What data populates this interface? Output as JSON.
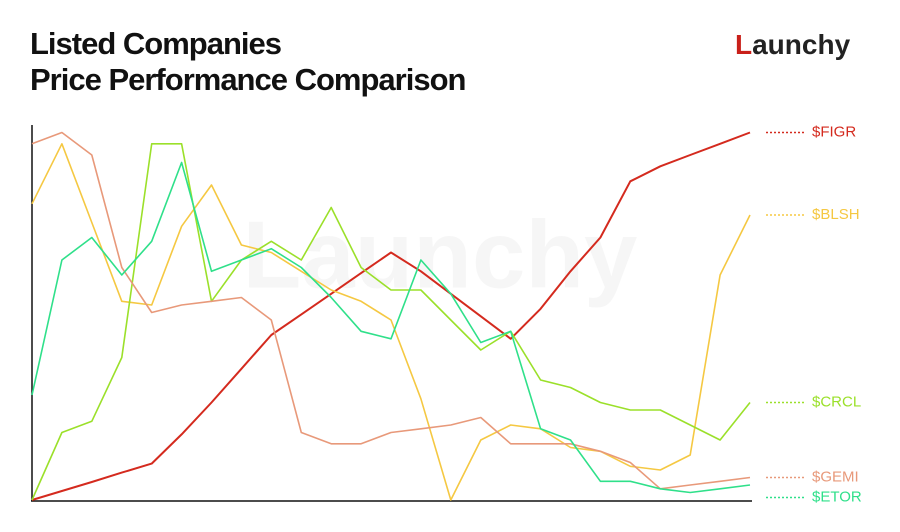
{
  "chart_data": {
    "type": "line",
    "title": [
      "Listed Companies",
      "Price Performance Comparison"
    ],
    "logo": {
      "initial": "L",
      "rest": "aunchy"
    },
    "watermark": "Launchy",
    "ylim": [
      0,
      100
    ],
    "series": [
      {
        "name": "$FIGR",
        "color": "#d42a1e",
        "values": [
          0,
          2.4,
          4.8,
          7.3,
          9.7,
          17.5,
          26,
          35,
          44,
          49.5,
          55,
          60.5,
          66,
          61,
          55,
          49,
          43,
          51,
          61,
          70,
          85,
          89,
          92,
          95,
          98
        ]
      },
      {
        "name": "$BLSH",
        "color": "#f5c842",
        "values": [
          79,
          95,
          74,
          53,
          52,
          73,
          84,
          68,
          66,
          61,
          56,
          53,
          48,
          27,
          0,
          16,
          20,
          19,
          14,
          13,
          9,
          8,
          12,
          60,
          76
        ]
      },
      {
        "name": "$CRCL",
        "color": "#9be02a",
        "values": [
          0,
          18,
          21,
          38,
          95,
          95,
          53,
          64,
          69,
          64,
          78,
          62,
          56,
          56,
          48,
          40,
          45,
          32,
          30,
          26,
          24,
          24,
          20,
          16,
          26
        ]
      },
      {
        "name": "$GEMI",
        "color": "#e8997a",
        "values": [
          95,
          98,
          92,
          62,
          50,
          52,
          53,
          54,
          48,
          18,
          15,
          15,
          18,
          19,
          20,
          22,
          15,
          15,
          15,
          13,
          10,
          3,
          4,
          5,
          6
        ]
      },
      {
        "name": "$ETOR",
        "color": "#2fe08a",
        "values": [
          28,
          64,
          70,
          60,
          69,
          90,
          61,
          64,
          67,
          62,
          54,
          45,
          43,
          64,
          55,
          42,
          45,
          19,
          16,
          5,
          5,
          3,
          2,
          3,
          4
        ]
      }
    ]
  }
}
